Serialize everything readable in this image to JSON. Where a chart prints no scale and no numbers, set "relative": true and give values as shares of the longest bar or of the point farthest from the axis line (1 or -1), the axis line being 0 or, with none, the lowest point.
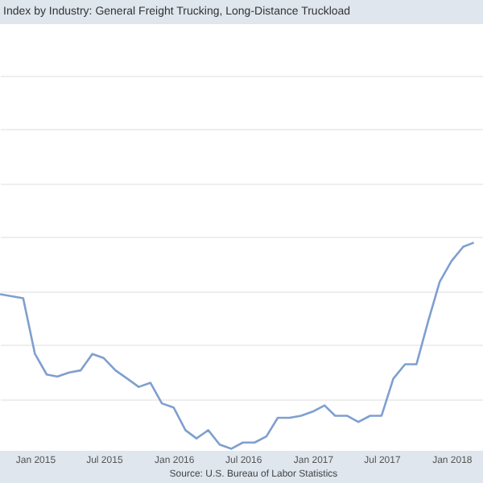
{
  "chart_data": {
    "type": "line",
    "title": "Index by Industry: General Freight Trucking, Long-Distance Truckload",
    "relative": true,
    "grid": "y",
    "x": [
      "2014-10",
      "2014-11",
      "2014-12",
      "2015-01",
      "2015-02",
      "2015-03",
      "2015-04",
      "2015-05",
      "2015-06",
      "2015-07",
      "2015-08",
      "2015-09",
      "2015-10",
      "2015-11",
      "2015-12",
      "2016-01",
      "2016-02",
      "2016-03",
      "2016-04",
      "2016-05",
      "2016-06",
      "2016-07",
      "2016-08",
      "2016-09",
      "2016-10",
      "2016-11",
      "2016-12",
      "2017-01",
      "2017-02",
      "2017-03",
      "2017-04",
      "2017-05",
      "2017-06",
      "2017-07",
      "2017-08",
      "2017-09",
      "2017-10",
      "2017-11",
      "2017-12",
      "2018-01",
      "2018-02",
      "2018-03"
    ],
    "series": [
      {
        "color": "#7f9fcf",
        "values": [
          0.75,
          0.74,
          0.73,
          0.46,
          0.36,
          0.35,
          0.37,
          0.38,
          0.46,
          0.44,
          0.38,
          0.34,
          0.3,
          0.32,
          0.22,
          0.2,
          0.09,
          0.05,
          0.09,
          0.02,
          0,
          0.03,
          0.03,
          0.06,
          0.15,
          0.15,
          0.16,
          0.18,
          0.21,
          0.16,
          0.16,
          0.13,
          0.16,
          0.16,
          0.34,
          0.41,
          0.41,
          0.62,
          0.81,
          0.91,
          0.98,
          1
        ]
      }
    ],
    "xlim": [
      "2014-10-01",
      "2018-03-25"
    ],
    "xticks": [
      {
        "value": "2015-01",
        "label": "Jan 2015"
      },
      {
        "value": "2015-07",
        "label": "Jul 2015"
      },
      {
        "value": "2016-01",
        "label": "Jan 2016"
      },
      {
        "value": "2016-07",
        "label": "Jul 2016"
      },
      {
        "value": "2017-01",
        "label": "Jan 2017"
      },
      {
        "value": "2017-07",
        "label": "Jul 2017"
      },
      {
        "value": "2018-01",
        "label": "Jan 2018"
      }
    ],
    "annotations": [
      "Source: U.S. Bureau of Labor Statistics"
    ]
  }
}
